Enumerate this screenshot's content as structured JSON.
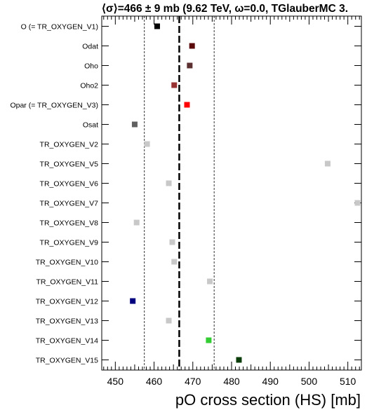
{
  "chart_data": {
    "type": "scatter",
    "title": "⟨σ⟩=466 ± 9 mb (9.62 TeV, ω=0.0, TGlauberMC 3.",
    "xlabel": "pO cross section (HS) [mb]",
    "xlim": [
      446.5,
      513.5
    ],
    "xticks": [
      450,
      460,
      470,
      480,
      490,
      500,
      510
    ],
    "mean": 466.5,
    "band": [
      457.5,
      475.5
    ],
    "categories": [
      "O (= TR_OXYGEN_V1)",
      "Odat",
      "Oho",
      "Oho2",
      "Opar (= TR_OXYGEN_V3)",
      "Osat",
      "TR_OXYGEN_V2",
      "TR_OXYGEN_V5",
      "TR_OXYGEN_V6",
      "TR_OXYGEN_V7",
      "TR_OXYGEN_V8",
      "TR_OXYGEN_V9",
      "TR_OXYGEN_V10",
      "TR_OXYGEN_V11",
      "TR_OXYGEN_V12",
      "TR_OXYGEN_V13",
      "TR_OXYGEN_V14",
      "TR_OXYGEN_V15"
    ],
    "values": [
      460.8,
      469.8,
      469.2,
      465.2,
      468.5,
      455.0,
      458.2,
      504.8,
      463.8,
      512.5,
      455.5,
      464.7,
      465.2,
      474.4,
      454.5,
      463.8,
      474.1,
      481.9
    ],
    "colors": [
      "#000000",
      "#5a0a0a",
      "#5c3030",
      "#993333",
      "#ff0000",
      "#606060",
      "#c8c8c8",
      "#c8c8c8",
      "#c8c8c8",
      "#c8c8c8",
      "#c8c8c8",
      "#c8c8c8",
      "#c8c8c8",
      "#c8c8c8",
      "#00007f",
      "#c8c8c8",
      "#33cc33",
      "#0a3d0a"
    ],
    "grid": false,
    "legend": "none"
  }
}
